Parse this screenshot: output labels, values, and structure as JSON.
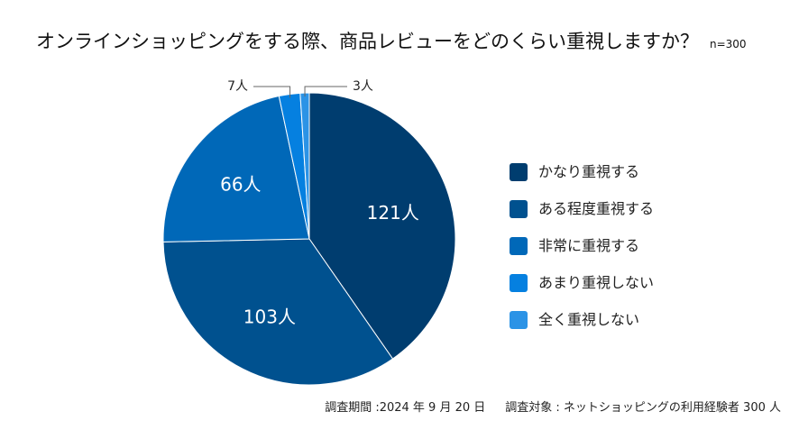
{
  "chart_data": {
    "type": "pie",
    "title": "オンラインショッピングをする際、商品レビューをどのくらい重視しますか？",
    "subtitle": "n=300",
    "categories": [
      "かなり重視する",
      "ある程度重視する",
      "非常に重視する",
      "あまり重視しない",
      "全く重視しない"
    ],
    "values": [
      121,
      103,
      66,
      7,
      3
    ],
    "data_labels": [
      "121人",
      "103人",
      "66人",
      "7人",
      "3人"
    ],
    "colors": [
      "#003d6f",
      "#00518f",
      "#0068b8",
      "#0580e0",
      "#2b93e6"
    ],
    "start": "12 o'clock",
    "direction": "clockwise",
    "legend_position": "right"
  },
  "footer": {
    "date": "調査期間 :2024 年 9 月 20 日",
    "target": "調査対象 : ネットショッピングの利用経験者 300 人"
  }
}
